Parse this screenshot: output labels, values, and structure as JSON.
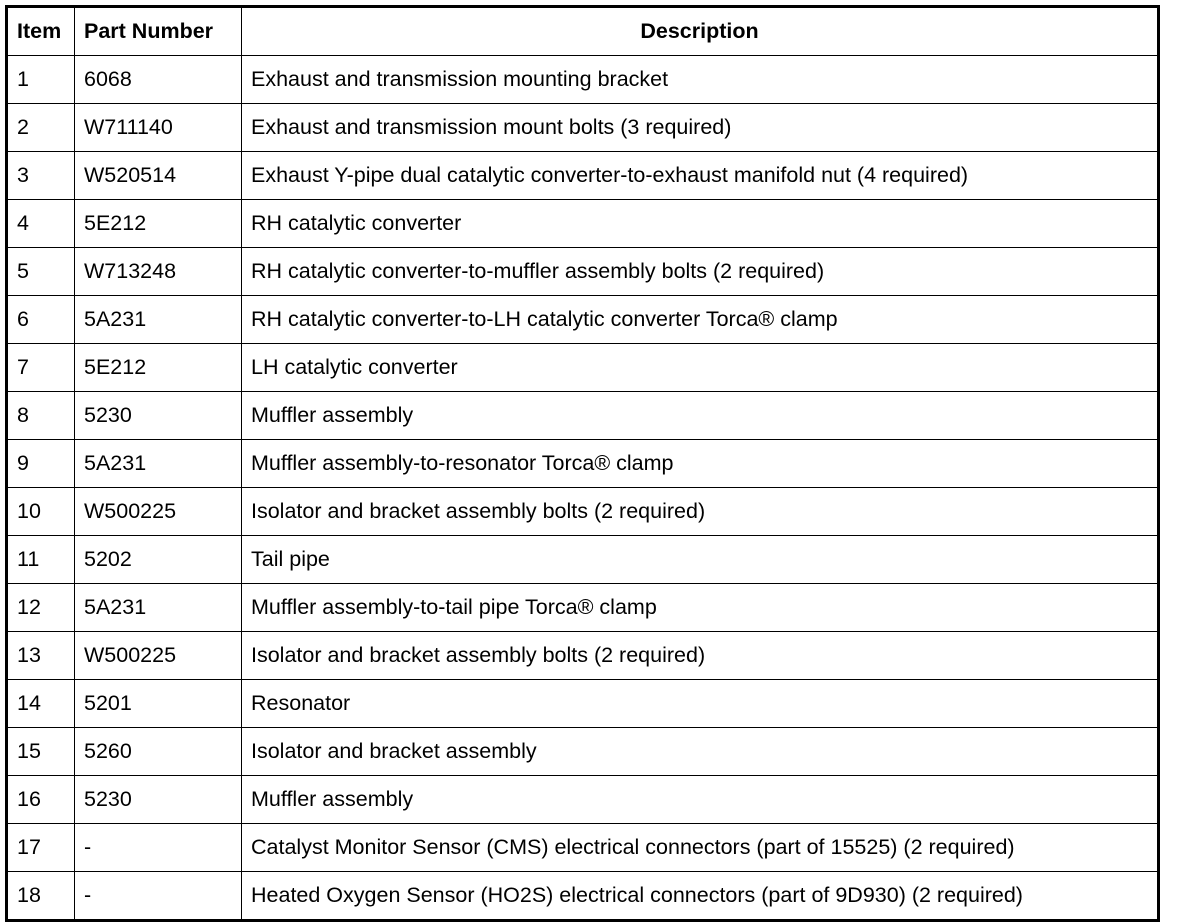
{
  "headers": {
    "item": "Item",
    "part_number": "Part Number",
    "description": "Description"
  },
  "rows": [
    {
      "item": "1",
      "part": "6068",
      "desc": "Exhaust and transmission mounting bracket"
    },
    {
      "item": "2",
      "part": "W711140",
      "desc": "Exhaust and transmission mount bolts (3 required)"
    },
    {
      "item": "3",
      "part": "W520514",
      "desc": "Exhaust Y-pipe dual catalytic converter-to-exhaust manifold nut (4 required)"
    },
    {
      "item": "4",
      "part": "5E212",
      "desc": "RH catalytic converter"
    },
    {
      "item": "5",
      "part": "W713248",
      "desc": "RH catalytic converter-to-muffler assembly bolts (2 required)"
    },
    {
      "item": "6",
      "part": "5A231",
      "desc": "RH catalytic converter-to-LH catalytic converter Torca® clamp"
    },
    {
      "item": "7",
      "part": "5E212",
      "desc": "LH catalytic converter"
    },
    {
      "item": "8",
      "part": "5230",
      "desc": "Muffler assembly"
    },
    {
      "item": "9",
      "part": "5A231",
      "desc": "Muffler assembly-to-resonator Torca® clamp"
    },
    {
      "item": "10",
      "part": "W500225",
      "desc": "Isolator and bracket assembly bolts (2 required)"
    },
    {
      "item": "11",
      "part": "5202",
      "desc": "Tail pipe"
    },
    {
      "item": "12",
      "part": "5A231",
      "desc": "Muffler assembly-to-tail pipe Torca® clamp"
    },
    {
      "item": "13",
      "part": "W500225",
      "desc": "Isolator and bracket assembly bolts (2 required)"
    },
    {
      "item": "14",
      "part": "5201",
      "desc": "Resonator"
    },
    {
      "item": "15",
      "part": "5260",
      "desc": "Isolator and bracket assembly"
    },
    {
      "item": "16",
      "part": "5230",
      "desc": "Muffler assembly"
    },
    {
      "item": "17",
      "part": "-",
      "desc": "Catalyst Monitor Sensor (CMS) electrical connectors (part of 15525) (2 required)"
    },
    {
      "item": "18",
      "part": "-",
      "desc": "Heated Oxygen Sensor (HO2S) electrical connectors (part of 9D930) (2 required)"
    }
  ]
}
